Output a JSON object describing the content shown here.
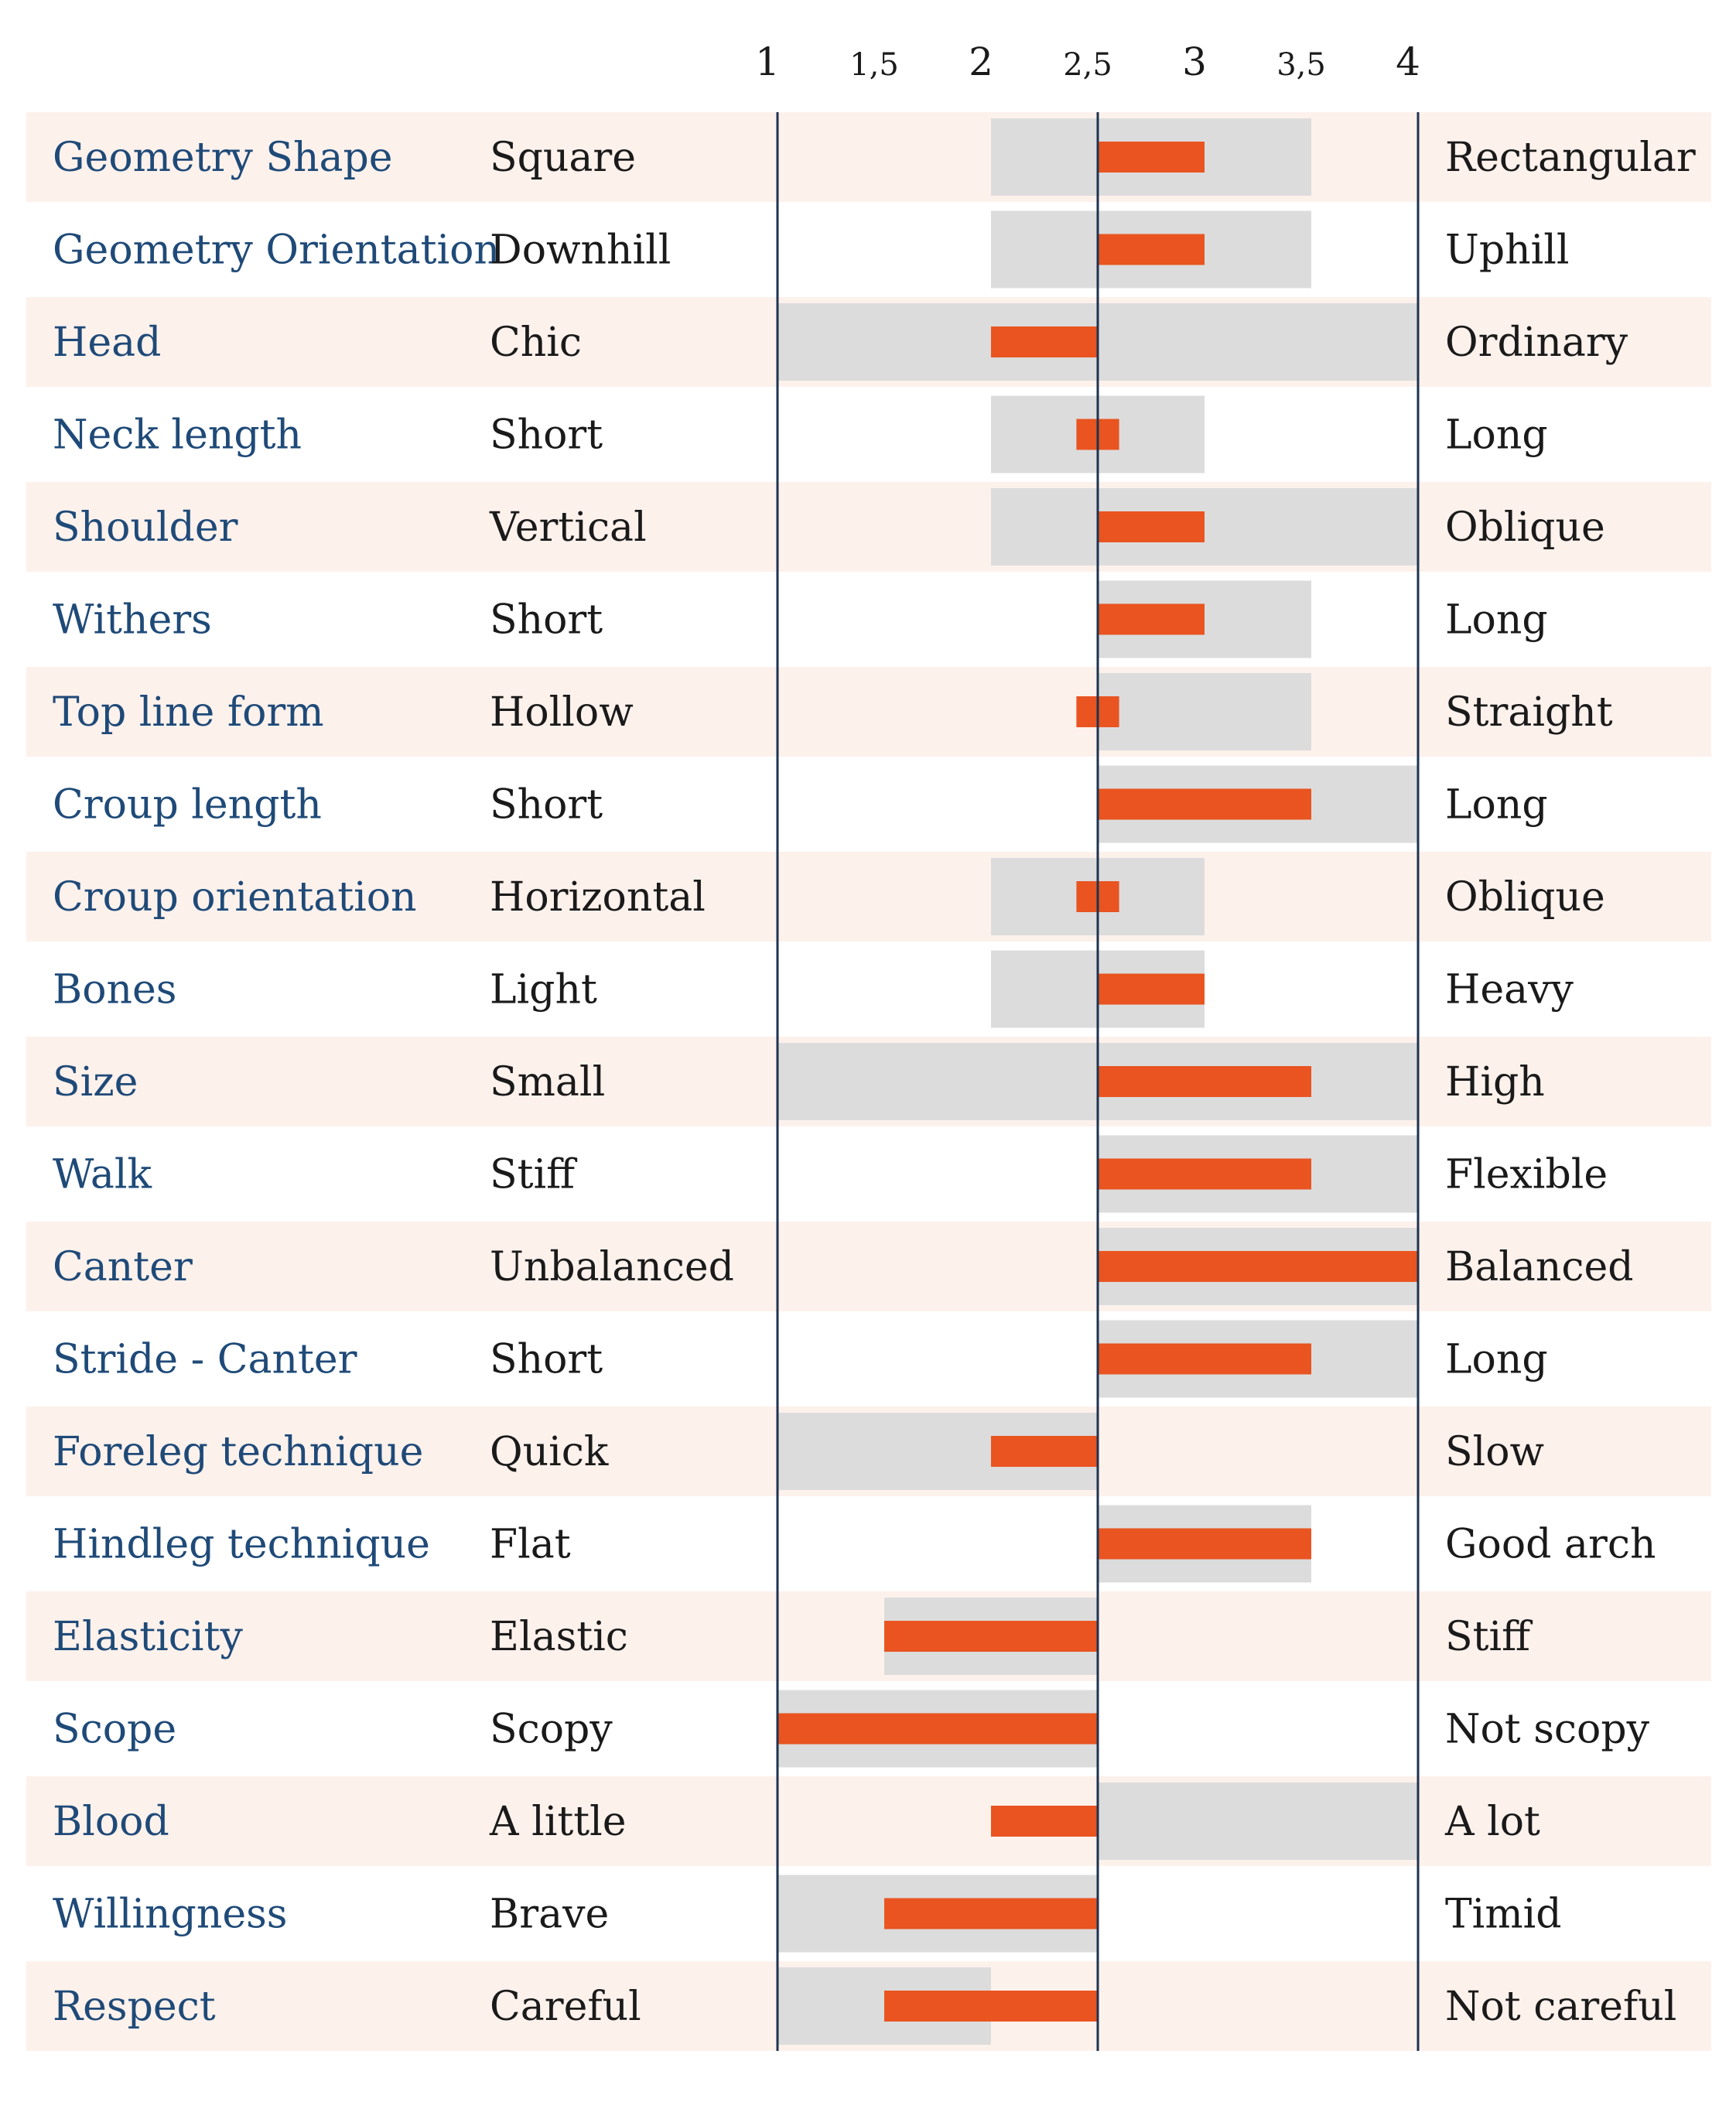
{
  "chart_data": {
    "type": "bar",
    "xlim": [
      1,
      4
    ],
    "center_value": 2.5,
    "ticks": [
      "1",
      "1,5",
      "2",
      "2,5",
      "3",
      "3,5",
      "4"
    ],
    "tick_values": [
      1,
      1.5,
      2,
      2.5,
      3,
      3.5,
      4
    ],
    "colors": {
      "row_shaded": "#fdf1ec",
      "range_band": "#dcdcdc",
      "value_bar": "#e95420",
      "axis_line": "#1e3350",
      "trait_text": "#1f4a78",
      "pole_text": "#1a1a1a"
    },
    "rows": [
      {
        "trait": "Geometry Shape",
        "left": "Square",
        "right": "Rectangular",
        "range": [
          2,
          3.5
        ],
        "value": 3
      },
      {
        "trait": "Geometry Orientation",
        "left": "Downhill",
        "right": "Uphill",
        "range": [
          2,
          3.5
        ],
        "value": 3
      },
      {
        "trait": "Head",
        "left": "Chic",
        "right": "Ordinary",
        "range": [
          1,
          4
        ],
        "value": 2
      },
      {
        "trait": "Neck length",
        "left": "Short",
        "right": "Long",
        "range": [
          2,
          3
        ],
        "value": 2.4,
        "value_end": 2.6
      },
      {
        "trait": "Shoulder",
        "left": "Vertical",
        "right": "Oblique",
        "range": [
          2,
          4
        ],
        "value": 3
      },
      {
        "trait": "Withers",
        "left": "Short",
        "right": "Long",
        "range": [
          2.5,
          3.5
        ],
        "value": 3
      },
      {
        "trait": "Top line form",
        "left": "Hollow",
        "right": "Straight",
        "range": [
          2.5,
          3.5
        ],
        "value": 2.4,
        "value_end": 2.6
      },
      {
        "trait": "Croup length",
        "left": "Short",
        "right": "Long",
        "range": [
          2.5,
          4
        ],
        "value": 3.5
      },
      {
        "trait": "Croup orientation",
        "left": "Horizontal",
        "right": "Oblique",
        "range": [
          2,
          3
        ],
        "value": 2.4,
        "value_end": 2.6
      },
      {
        "trait": "Bones",
        "left": "Light",
        "right": "Heavy",
        "range": [
          2,
          3
        ],
        "value": 3
      },
      {
        "trait": "Size",
        "left": "Small",
        "right": "High",
        "range": [
          1,
          4
        ],
        "value": 3.5
      },
      {
        "trait": "Walk",
        "left": "Stiff",
        "right": "Flexible",
        "range": [
          2.5,
          4
        ],
        "value": 3.5
      },
      {
        "trait": "Canter",
        "left": "Unbalanced",
        "right": "Balanced",
        "range": [
          2.5,
          4
        ],
        "value": 4
      },
      {
        "trait": "Stride - Canter",
        "left": "Short",
        "right": "Long",
        "range": [
          2.5,
          4
        ],
        "value": 3.5
      },
      {
        "trait": "Foreleg technique",
        "left": "Quick",
        "right": "Slow",
        "range": [
          1,
          2.5
        ],
        "value": 2
      },
      {
        "trait": "Hindleg technique",
        "left": "Flat",
        "right": "Good arch",
        "range": [
          2.5,
          3.5
        ],
        "value": 3.5
      },
      {
        "trait": "Elasticity",
        "left": "Elastic",
        "right": "Stiff",
        "range": [
          1.5,
          2.5
        ],
        "value": 1.5
      },
      {
        "trait": "Scope",
        "left": "Scopy",
        "right": "Not scopy",
        "range": [
          1,
          2.5
        ],
        "value": 1
      },
      {
        "trait": "Blood",
        "left": "A little",
        "right": "A lot",
        "range": [
          2.5,
          4
        ],
        "value": 2
      },
      {
        "trait": "Willingness",
        "left": "Brave",
        "right": "Timid",
        "range": [
          1,
          2.5
        ],
        "value": 1.5
      },
      {
        "trait": "Respect",
        "left": "Careful",
        "right": "Not careful",
        "range": [
          1,
          2
        ],
        "value": 1.5
      }
    ]
  }
}
